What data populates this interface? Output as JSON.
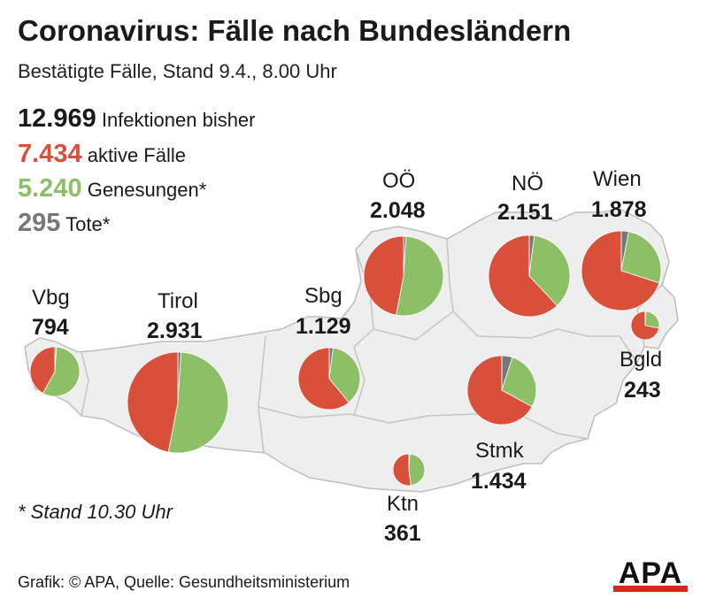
{
  "header": {
    "title": "Coronavirus: Fälle nach Bundesländern",
    "subtitle": "Bestätigte Fälle, Stand 9.4., 8.00 Uhr"
  },
  "totals": [
    {
      "value": "12.969",
      "label": "Infektionen bisher",
      "color": "#1a1a1a"
    },
    {
      "value": "7.434",
      "label": "aktive Fälle",
      "color": "#d9503a"
    },
    {
      "value": "5.240",
      "label": "Genesungen*",
      "color": "#8cbf66"
    },
    {
      "value": "295",
      "label": "Tote*",
      "color": "#777777"
    }
  ],
  "colors": {
    "active": "#d9503a",
    "recovered": "#8cbf66",
    "dead": "#777777",
    "map_fill": "#eeeeee",
    "map_border": "#bdbdbd"
  },
  "regions": [
    {
      "name": "Vbg",
      "count": "794",
      "active": 0.42,
      "recovered": 0.57,
      "dead": 0.01
    },
    {
      "name": "Tirol",
      "count": "2.931",
      "active": 0.47,
      "recovered": 0.52,
      "dead": 0.01
    },
    {
      "name": "Sbg",
      "count": "1.129",
      "active": 0.61,
      "recovered": 0.37,
      "dead": 0.02
    },
    {
      "name": "OÖ",
      "count": "2.048",
      "active": 0.47,
      "recovered": 0.52,
      "dead": 0.01
    },
    {
      "name": "NÖ",
      "count": "2.151",
      "active": 0.62,
      "recovered": 0.36,
      "dead": 0.02
    },
    {
      "name": "Wien",
      "count": "1.878",
      "active": 0.7,
      "recovered": 0.27,
      "dead": 0.03
    },
    {
      "name": "Bgld",
      "count": "243",
      "active": 0.72,
      "recovered": 0.27,
      "dead": 0.01
    },
    {
      "name": "Stmk",
      "count": "1.434",
      "active": 0.67,
      "recovered": 0.28,
      "dead": 0.05
    },
    {
      "name": "Ktn",
      "count": "361",
      "active": 0.52,
      "recovered": 0.47,
      "dead": 0.01
    }
  ],
  "footnote": "* Stand 10.30 Uhr",
  "source": "Grafik: © APA, Quelle: Gesundheitsministerium",
  "logo": {
    "text": "APA"
  }
}
